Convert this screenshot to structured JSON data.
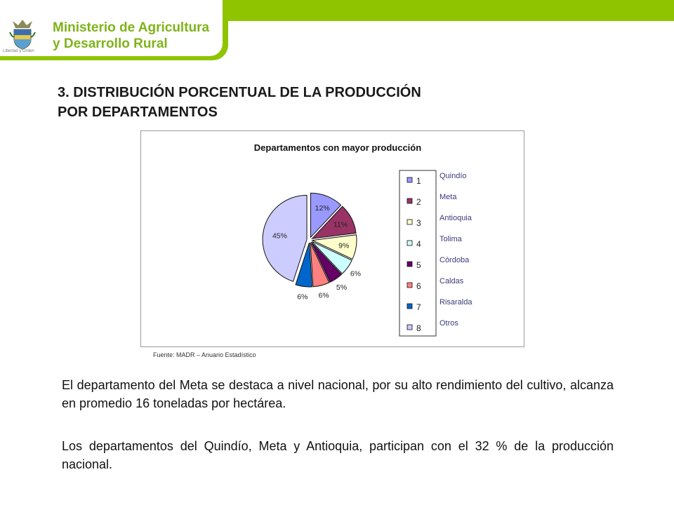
{
  "header": {
    "ministry_line1": "Ministerio de Agricultura",
    "ministry_line2": "y Desarrollo Rural",
    "seal_motto": "Libertad y Orden",
    "brand_color": "#8fc400"
  },
  "slide": {
    "title_line1": "3. DISTRIBUCIÓN PORCENTUAL DE LA PRODUCCIÓN",
    "title_line2": "POR DEPARTAMENTOS",
    "source": "Fuente: MADR – Anuario Estadístico",
    "paragraph1": "El departamento del Meta se destaca a nivel nacional, por su alto rendimiento del cultivo, alcanza en promedio 16 toneladas por hectárea.",
    "paragraph2": "Los departamentos del Quindío, Meta y Antioquia, participan con el 32 % de la producción nacional."
  },
  "chart_data": {
    "type": "pie",
    "title": "Departamentos con mayor producción",
    "legend_position": "right",
    "slices": [
      {
        "key": "1",
        "name": "Quindío",
        "value": 12,
        "label": "12%",
        "color": "#9999ff"
      },
      {
        "key": "2",
        "name": "Meta",
        "value": 11,
        "label": "11%",
        "color": "#993366"
      },
      {
        "key": "3",
        "name": "Antioquia",
        "value": 9,
        "label": "9%",
        "color": "#ffffcc"
      },
      {
        "key": "4",
        "name": "Tolima",
        "value": 6,
        "label": "6%",
        "color": "#ccffff"
      },
      {
        "key": "5",
        "name": "Córdoba",
        "value": 5,
        "label": "5%",
        "color": "#660066"
      },
      {
        "key": "6",
        "name": "Caldas",
        "value": 6,
        "label": "6%",
        "color": "#ff8080"
      },
      {
        "key": "7",
        "name": "Risaralda",
        "value": 6,
        "label": "6%",
        "color": "#0066cc"
      },
      {
        "key": "8",
        "name": "Otros",
        "value": 45,
        "label": "45%",
        "color": "#ccccff"
      }
    ]
  }
}
